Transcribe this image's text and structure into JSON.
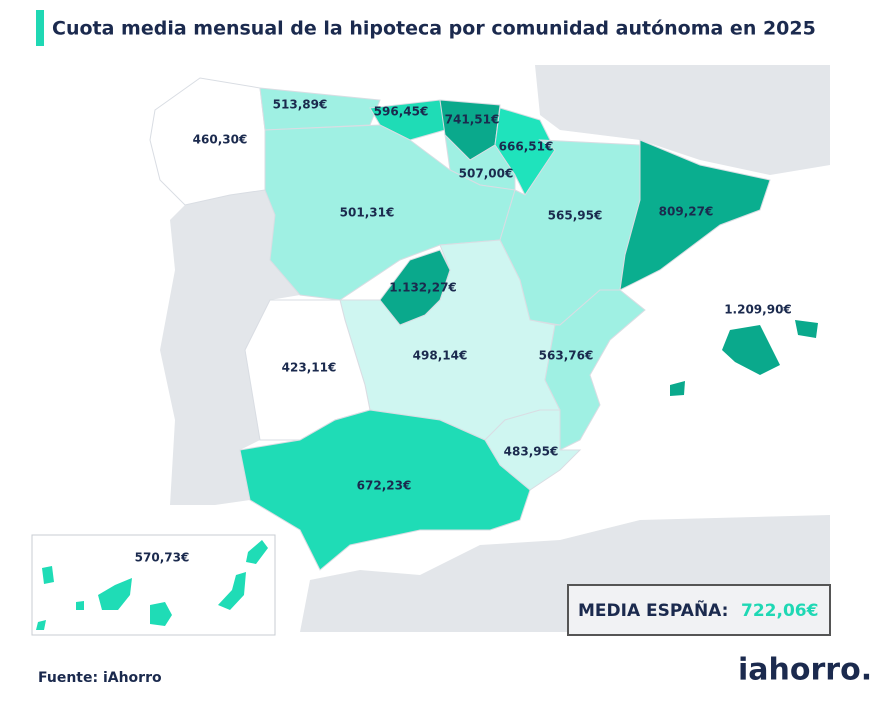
{
  "title": "Cuota media mensual de la hipoteca por comunidad autónoma en 2025",
  "regions": [
    {
      "name": "Galicia",
      "label": "460,30€"
    },
    {
      "name": "Asturias",
      "label": "513,89€"
    },
    {
      "name": "Cantabria",
      "label": "596,45€"
    },
    {
      "name": "País Vasco",
      "label": "741,51€"
    },
    {
      "name": "Navarra",
      "label": "666,51€"
    },
    {
      "name": "La Rioja",
      "label": "507,00€"
    },
    {
      "name": "Castilla y León",
      "label": "501,31€"
    },
    {
      "name": "Aragón",
      "label": "565,95€"
    },
    {
      "name": "Cataluña",
      "label": "809,27€"
    },
    {
      "name": "Madrid",
      "label": "1.132,27€"
    },
    {
      "name": "Castilla-La Mancha",
      "label": "498,14€"
    },
    {
      "name": "Comunidad Valenciana",
      "label": "563,76€"
    },
    {
      "name": "Murcia",
      "label": "483,95€"
    },
    {
      "name": "Extremadura",
      "label": "423,11€"
    },
    {
      "name": "Andalucía",
      "label": "672,23€"
    },
    {
      "name": "Baleares",
      "label": "1.209,90€"
    },
    {
      "name": "Canarias",
      "label": "570,73€"
    }
  ],
  "summary": {
    "label": "MEDIA ESPAÑA:",
    "value": "722,06€"
  },
  "source": "Fuente: iAhorro",
  "logo": "iahorro."
}
